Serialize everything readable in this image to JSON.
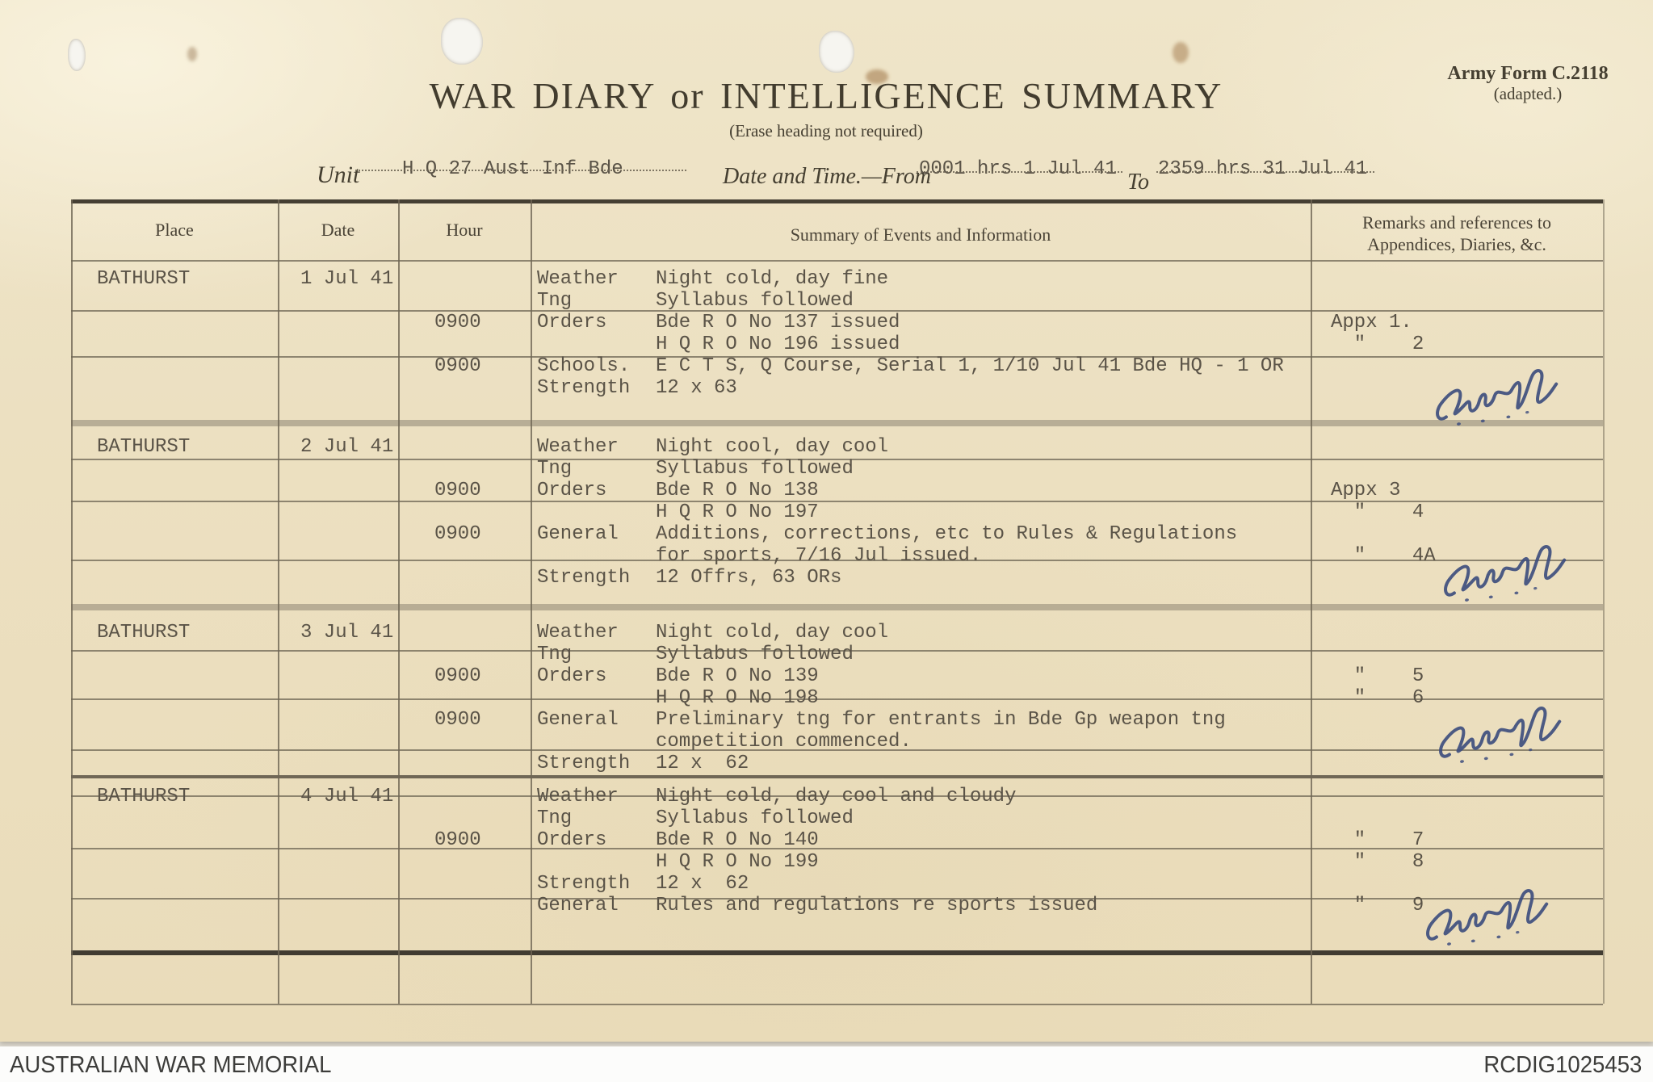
{
  "form": {
    "form_number": "Army Form C.2118",
    "form_number_sub": "(adapted.)",
    "title": "WAR DIARY  or  INTELLIGENCE  SUMMARY",
    "subtitle": "(Erase heading not required)",
    "unit_label": "Unit",
    "unit_value": "H Q 27 Aust Inf Bde",
    "datetime_label": "Date and Time.—From",
    "datetime_from": "0001 hrs 1 Jul 41",
    "to_label": "To",
    "datetime_to": "2359 hrs 31 Jul 41",
    "columns": {
      "place": "Place",
      "date": "Date",
      "hour": "Hour",
      "summary": "Summary of Events and Information",
      "remarks_line1": "Remarks and references to",
      "remarks_line2": "Appendices, Diaries, &c."
    }
  },
  "entries": [
    {
      "place": "BATHURST",
      "date": "1 Jul 41",
      "signature_present": true,
      "rows": [
        {
          "hour": "",
          "label": "Weather",
          "text": "Night cold, day fine",
          "remark": ""
        },
        {
          "hour": "",
          "label": "Tng",
          "text": "Syllabus followed",
          "remark": ""
        },
        {
          "hour": "0900",
          "label": "Orders",
          "text": "Bde R O No 137 issued",
          "remark": "Appx 1."
        },
        {
          "hour": "",
          "label": "",
          "text": "H Q R O No 196 issued",
          "remark": "  \"    2"
        },
        {
          "hour": "0900",
          "label": "Schools.",
          "text": "E C T S, Q Course, Serial 1, 1/10 Jul 41 Bde HQ - 1 OR",
          "remark": ""
        },
        {
          "hour": "",
          "label": "Strength",
          "text": "12 x 63",
          "remark": ""
        }
      ]
    },
    {
      "place": "BATHURST",
      "date": "2 Jul 41",
      "signature_present": true,
      "rows": [
        {
          "hour": "",
          "label": "Weather",
          "text": "Night cool, day cool",
          "remark": ""
        },
        {
          "hour": "",
          "label": "Tng",
          "text": "Syllabus followed",
          "remark": ""
        },
        {
          "hour": "0900",
          "label": "Orders",
          "text": "Bde R O No 138",
          "remark": "Appx 3"
        },
        {
          "hour": "",
          "label": "",
          "text": "H Q R O No 197",
          "remark": "  \"    4"
        },
        {
          "hour": "0900",
          "label": "General",
          "text": "Additions, corrections, etc to Rules & Regulations",
          "remark": ""
        },
        {
          "hour": "",
          "label": "",
          "text": "for sports, 7/16 Jul issued.",
          "remark": "  \"    4A"
        },
        {
          "hour": "",
          "label": "Strength",
          "text": "12 Offrs, 63 ORs",
          "remark": ""
        }
      ]
    },
    {
      "place": "BATHURST",
      "date": "3 Jul 41",
      "signature_present": true,
      "rows": [
        {
          "hour": "",
          "label": "Weather",
          "text": "Night cold, day cool",
          "remark": ""
        },
        {
          "hour": "",
          "label": "Tng",
          "text": "Syllabus followed",
          "remark": ""
        },
        {
          "hour": "0900",
          "label": "Orders",
          "text": "Bde R O No 139",
          "remark": "  \"    5"
        },
        {
          "hour": "",
          "label": "",
          "text": "H Q R O No 198",
          "remark": "  \"    6"
        },
        {
          "hour": "0900",
          "label": "General",
          "text": "Preliminary tng for entrants in Bde Gp weapon tng",
          "remark": ""
        },
        {
          "hour": "",
          "label": "",
          "text": "competition commenced.",
          "remark": ""
        },
        {
          "hour": "",
          "label": "Strength",
          "text": "12 x  62",
          "remark": ""
        }
      ]
    },
    {
      "place": "BATHURST",
      "date": "4 Jul 41",
      "signature_present": true,
      "rows": [
        {
          "hour": "",
          "label": "Weather",
          "text": "Night cold, day cool and cloudy",
          "remark": ""
        },
        {
          "hour": "",
          "label": "Tng",
          "text": "Syllabus followed",
          "remark": ""
        },
        {
          "hour": "0900",
          "label": "Orders",
          "text": "Bde R O No 140",
          "remark": "  \"    7"
        },
        {
          "hour": "",
          "label": "",
          "text": "H Q R O No 199",
          "remark": "  \"    8"
        },
        {
          "hour": "",
          "label": "Strength",
          "text": "12 x  62",
          "remark": ""
        },
        {
          "hour": "",
          "label": "General",
          "text": "Rules and regulations re sports issued",
          "remark": "  \"    9"
        }
      ]
    }
  ],
  "footer": {
    "left": "AUSTRALIAN WAR MEMORIAL",
    "right": "RCDIG1025453"
  }
}
